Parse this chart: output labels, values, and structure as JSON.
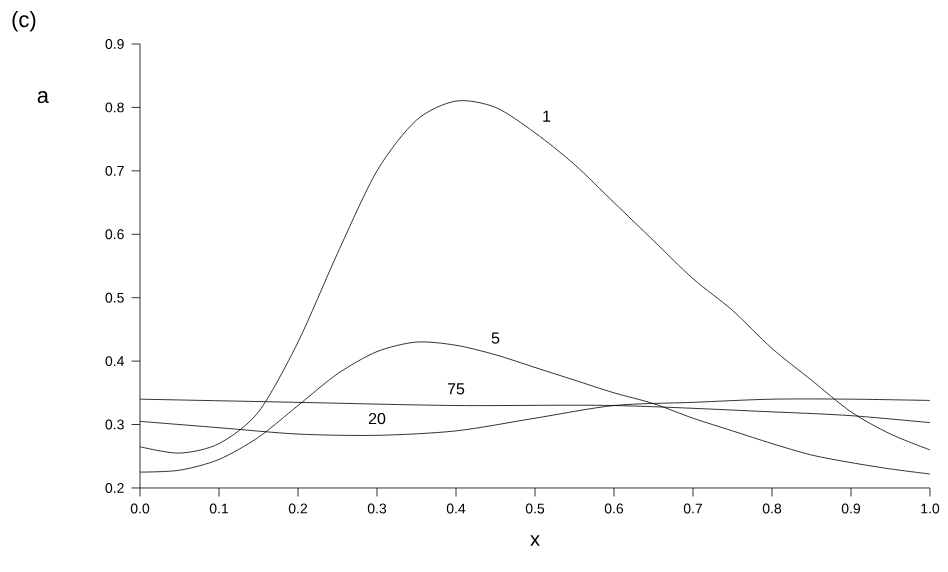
{
  "chart_data": {
    "type": "line",
    "title": "(c)",
    "ylabel": "a",
    "xlabel": "x",
    "xlim": [
      0,
      1
    ],
    "ylim": [
      0.2,
      0.9
    ],
    "xticks": [
      {
        "value": 0,
        "label": "0.0"
      },
      0.1,
      0.2,
      0.3,
      0.4,
      0.5,
      0.6,
      0.7,
      0.8,
      0.9,
      {
        "value": 1,
        "label": "1.0"
      }
    ],
    "yticks": [
      0.2,
      0.3,
      0.4,
      0.5,
      0.6,
      0.7,
      0.8,
      0.9
    ],
    "grid": false,
    "legend": false,
    "marker": "none",
    "line_style": "solid",
    "series": [
      {
        "name": "1",
        "color": "#000000",
        "x": [
          0,
          0.05,
          0.1,
          0.15,
          0.2,
          0.25,
          0.3,
          0.35,
          0.4,
          0.45,
          0.5,
          0.55,
          0.6,
          0.65,
          0.7,
          0.75,
          0.8,
          0.85,
          0.9,
          0.95,
          1.0
        ],
        "values": [
          0.265,
          0.255,
          0.27,
          0.32,
          0.43,
          0.57,
          0.7,
          0.78,
          0.81,
          0.8,
          0.76,
          0.71,
          0.65,
          0.59,
          0.53,
          0.48,
          0.42,
          0.37,
          0.32,
          0.285,
          0.26
        ]
      },
      {
        "name": "5",
        "color": "#000000",
        "x": [
          0,
          0.05,
          0.1,
          0.15,
          0.2,
          0.25,
          0.3,
          0.35,
          0.4,
          0.45,
          0.5,
          0.55,
          0.6,
          0.65,
          0.7,
          0.75,
          0.8,
          0.85,
          0.9,
          0.95,
          1.0
        ],
        "values": [
          0.225,
          0.228,
          0.245,
          0.28,
          0.33,
          0.38,
          0.415,
          0.43,
          0.425,
          0.41,
          0.39,
          0.37,
          0.35,
          0.333,
          0.31,
          0.29,
          0.27,
          0.252,
          0.24,
          0.23,
          0.222
        ]
      },
      {
        "name": "20",
        "color": "#000000",
        "x": [
          0,
          0.1,
          0.2,
          0.3,
          0.4,
          0.5,
          0.6,
          0.7,
          0.8,
          0.9,
          1.0
        ],
        "values": [
          0.305,
          0.295,
          0.285,
          0.283,
          0.29,
          0.31,
          0.33,
          0.335,
          0.34,
          0.34,
          0.338
        ]
      },
      {
        "name": "75",
        "color": "#000000",
        "x": [
          0,
          0.2,
          0.4,
          0.6,
          0.8,
          0.9,
          1.0
        ],
        "values": [
          0.34,
          0.335,
          0.33,
          0.33,
          0.32,
          0.314,
          0.303
        ]
      }
    ]
  }
}
